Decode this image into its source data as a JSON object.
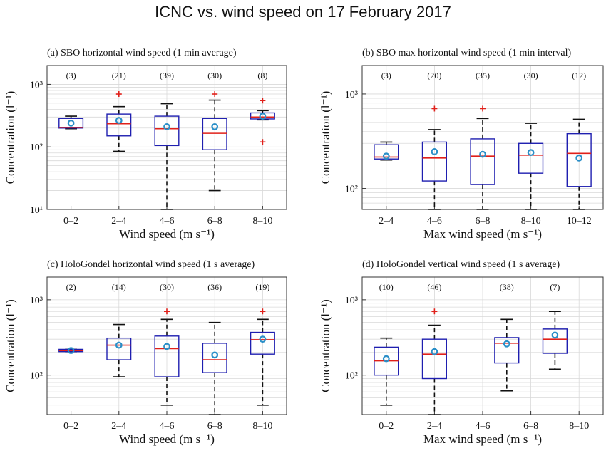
{
  "figure": {
    "title": "ICNC vs. wind speed on 17 February 2017",
    "colors": {
      "box": "#1f1fb0",
      "median": "#e0201a",
      "outlier": "#e0201a",
      "mean": "#2a8fc8",
      "whisker": "#111111",
      "grid": "#d9d9d9"
    }
  },
  "chart_data": [
    {
      "type": "box",
      "title": "(a)  SBO horizontal wind speed (1 min average)",
      "xlabel": "Wind speed (m s⁻¹)",
      "ylabel": "Concentration (l⁻¹)",
      "yscale": "log",
      "ylim": [
        10,
        2000
      ],
      "yticks": [
        10,
        100,
        1000
      ],
      "ytick_labels": [
        "10¹",
        "10²",
        "10³"
      ],
      "grid": true,
      "categories": [
        "0–2",
        "2–4",
        "4–6",
        "6–8",
        "8–10"
      ],
      "counts": [
        "(3)",
        "(21)",
        "(39)",
        "(30)",
        "(8)"
      ],
      "boxes": [
        {
          "whislo": 195,
          "q1": 200,
          "med": 205,
          "q3": 285,
          "whishi": 310,
          "mean": 240,
          "fliers": []
        },
        {
          "whislo": 85,
          "q1": 150,
          "med": 235,
          "q3": 335,
          "whishi": 440,
          "mean": 265,
          "fliers": [
            700
          ]
        },
        {
          "whislo": 10,
          "q1": 105,
          "med": 195,
          "q3": 310,
          "whishi": 490,
          "mean": 210,
          "fliers": []
        },
        {
          "whislo": 20,
          "q1": 90,
          "med": 165,
          "q3": 285,
          "whishi": 560,
          "mean": 210,
          "fliers": [
            700
          ]
        },
        {
          "whislo": 270,
          "q1": 280,
          "med": 300,
          "q3": 350,
          "whishi": 380,
          "mean": 310,
          "fliers": [
            120,
            550
          ]
        }
      ]
    },
    {
      "type": "box",
      "title": "(b)  SBO max horizontal wind speed (1 min interval)",
      "xlabel": "Max wind speed (m s⁻¹)",
      "ylabel": "Concentration (l⁻¹)",
      "yscale": "log",
      "ylim": [
        60,
        2000
      ],
      "yticks": [
        100,
        1000
      ],
      "ytick_labels": [
        "10²",
        "10³"
      ],
      "grid": true,
      "categories": [
        "2–4",
        "4–6",
        "6–8",
        "8–10",
        "10–12"
      ],
      "counts": [
        "(3)",
        "(20)",
        "(35)",
        "(30)",
        "(12)"
      ],
      "boxes": [
        {
          "whislo": 200,
          "q1": 205,
          "med": 215,
          "q3": 290,
          "whishi": 310,
          "mean": 220,
          "fliers": []
        },
        {
          "whislo": 60,
          "q1": 120,
          "med": 210,
          "q3": 310,
          "whishi": 420,
          "mean": 245,
          "fliers": [
            700
          ]
        },
        {
          "whislo": 60,
          "q1": 110,
          "med": 220,
          "q3": 335,
          "whishi": 550,
          "mean": 230,
          "fliers": [
            700
          ]
        },
        {
          "whislo": 60,
          "q1": 145,
          "med": 225,
          "q3": 300,
          "whishi": 490,
          "mean": 240,
          "fliers": []
        },
        {
          "whislo": 60,
          "q1": 105,
          "med": 235,
          "q3": 380,
          "whishi": 540,
          "mean": 210,
          "fliers": []
        }
      ]
    },
    {
      "type": "box",
      "title": "(c)  HoloGondel horizontal wind speed (1 s average)",
      "xlabel": "Wind speed (m s⁻¹)",
      "ylabel": "Concentration (l⁻¹)",
      "yscale": "log",
      "ylim": [
        30,
        2000
      ],
      "yticks": [
        100,
        1000
      ],
      "ytick_labels": [
        "10²",
        "10³"
      ],
      "grid": true,
      "categories": [
        "0–2",
        "2–4",
        "4–6",
        "6–8",
        "8–10"
      ],
      "counts": [
        "(2)",
        "(14)",
        "(30)",
        "(36)",
        "(19)"
      ],
      "boxes": [
        {
          "whislo": 205,
          "q1": 205,
          "med": 212,
          "q3": 220,
          "whishi": 220,
          "mean": 212,
          "fliers": []
        },
        {
          "whislo": 95,
          "q1": 160,
          "med": 250,
          "q3": 310,
          "whishi": 470,
          "mean": 250,
          "fliers": []
        },
        {
          "whislo": 40,
          "q1": 95,
          "med": 225,
          "q3": 330,
          "whishi": 550,
          "mean": 240,
          "fliers": [
            700
          ]
        },
        {
          "whislo": 30,
          "q1": 108,
          "med": 160,
          "q3": 265,
          "whishi": 500,
          "mean": 185,
          "fliers": []
        },
        {
          "whislo": 40,
          "q1": 190,
          "med": 295,
          "q3": 370,
          "whishi": 550,
          "mean": 300,
          "fliers": [
            700
          ]
        }
      ]
    },
    {
      "type": "box",
      "title": "(d)  HoloGondel vertical wind speed (1 s average)",
      "xlabel": "Max wind speed (m s⁻¹)",
      "ylabel": "Concentration (l⁻¹)",
      "yscale": "log",
      "ylim": [
        30,
        2000
      ],
      "yticks": [
        100,
        1000
      ],
      "ytick_labels": [
        "10²",
        "10³"
      ],
      "grid": true,
      "categories": [
        "0–2",
        "2–4",
        "4–6",
        "6–8",
        "8–10"
      ],
      "counts": [
        "(10)",
        "(46)",
        "(38)",
        "(7)"
      ],
      "count_positions": [
        0,
        1,
        2.5,
        3.5
      ],
      "box_positions": [
        0,
        1,
        2.5,
        3.5
      ],
      "boxes": [
        {
          "whislo": 40,
          "q1": 100,
          "med": 155,
          "q3": 235,
          "whishi": 310,
          "mean": 165,
          "fliers": []
        },
        {
          "whislo": 30,
          "q1": 90,
          "med": 190,
          "q3": 300,
          "whishi": 460,
          "mean": 205,
          "fliers": [
            700
          ]
        },
        {
          "whislo": 62,
          "q1": 145,
          "med": 265,
          "q3": 315,
          "whishi": 550,
          "mean": 260,
          "fliers": []
        },
        {
          "whislo": 120,
          "q1": 195,
          "med": 300,
          "q3": 410,
          "whishi": 700,
          "mean": 340,
          "fliers": []
        }
      ]
    }
  ]
}
